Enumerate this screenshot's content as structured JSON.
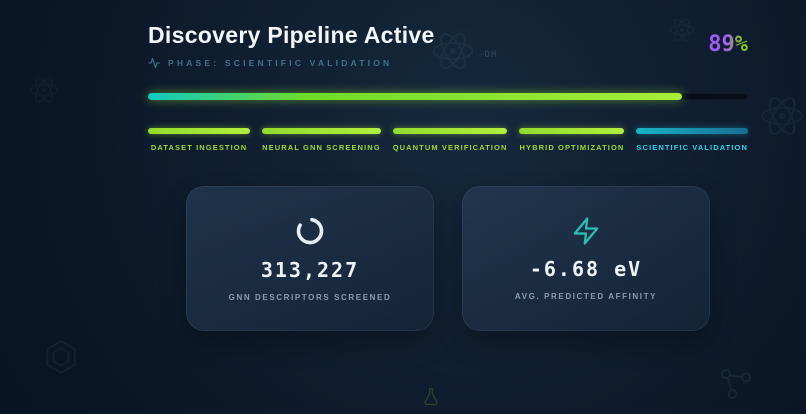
{
  "header": {
    "title": "Discovery Pipeline Active",
    "phase": "PHASE: SCIENTIFIC VALIDATION",
    "percent_label": "89%"
  },
  "progress": {
    "percent": 89
  },
  "stages": [
    {
      "label": "DATASET INGESTION",
      "status": "complete"
    },
    {
      "label": "NEURAL GNN SCREENING",
      "status": "complete"
    },
    {
      "label": "QUANTUM VERIFICATION",
      "status": "complete"
    },
    {
      "label": "HYBRID OPTIMIZATION",
      "status": "complete"
    },
    {
      "label": "SCIENTIFIC VALIDATION",
      "status": "active"
    }
  ],
  "cards": [
    {
      "icon": "spinner-icon",
      "value": "313,227",
      "label": "GNN DESCRIPTORS SCREENED"
    },
    {
      "icon": "bolt-icon",
      "value": "-6.68 eV",
      "label": "AVG. PREDICTED AFFINITY"
    }
  ],
  "decorations": {
    "formula": "-OH",
    "icons": [
      "atom-icon",
      "atom-icon",
      "atom-icon",
      "atom-icon",
      "hexagon-icon",
      "molecule-icon",
      "flask-icon"
    ]
  },
  "colors": {
    "accent_lime": "#a3e635",
    "accent_cyan": "#22d3ee",
    "accent_teal": "#2dd4bf",
    "accent_purple": "#a855f7",
    "background": "#0c1a29"
  }
}
